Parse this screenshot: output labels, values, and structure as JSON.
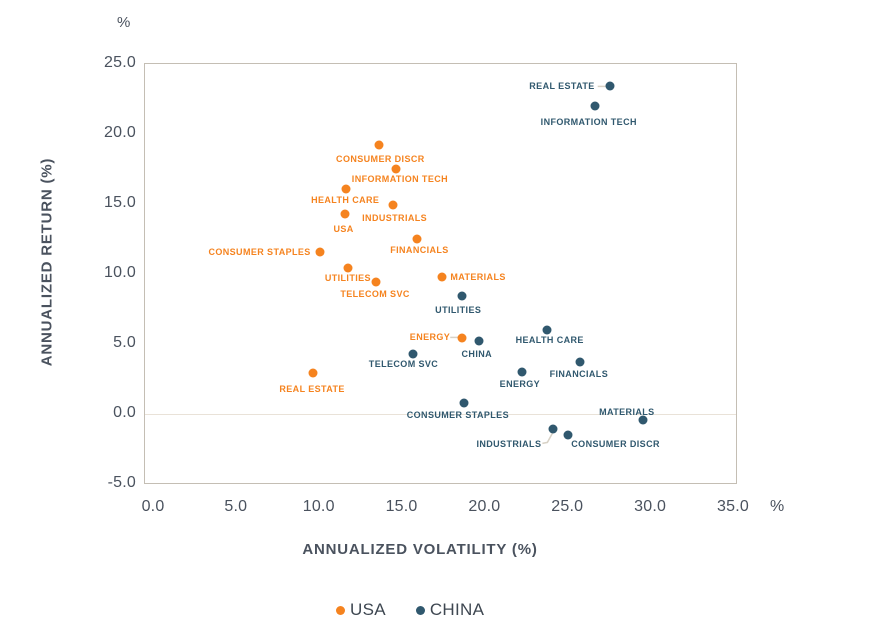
{
  "chart_data": {
    "type": "scatter",
    "xlabel": "ANNUALIZED VOLATILITY (%)",
    "ylabel": "ANNUALIZED RETURN (%)",
    "x_unit": "%",
    "y_unit": "%",
    "xlim": [
      0,
      35
    ],
    "ylim": [
      -5,
      25
    ],
    "x_ticks": [
      "0.0",
      "5.0",
      "10.0",
      "15.0",
      "20.0",
      "25.0",
      "30.0",
      "35.0"
    ],
    "y_ticks": [
      "25.0",
      "20.0",
      "15.0",
      "10.0",
      "5.0",
      "0.0",
      "-5.0"
    ],
    "grid": "zero-line-only",
    "legend_position": "bottom-center",
    "connector_color": "#d8d2c6",
    "series": [
      {
        "name": "USA",
        "color": "#f5831f",
        "points": [
          {
            "label": "CONSUMER DISCR",
            "x": 13.6,
            "y": 19.2,
            "lp": {
              "pos": "below",
              "dx": 1,
              "dy": 9
            }
          },
          {
            "label": "INFORMATION TECH",
            "x": 14.6,
            "y": 17.5,
            "lp": {
              "pos": "below",
              "dx": 4,
              "dy": 5
            }
          },
          {
            "label": "HEALTH CARE",
            "x": 11.6,
            "y": 16.1,
            "lp": {
              "pos": "below",
              "dx": -1,
              "dy": 6
            }
          },
          {
            "label": "INDUSTRIALS",
            "x": 14.4,
            "y": 14.9,
            "lp": {
              "pos": "below",
              "dx": 2,
              "dy": 8
            }
          },
          {
            "label": "USA",
            "x": 11.5,
            "y": 14.3,
            "lp": {
              "pos": "below",
              "dx": -1,
              "dy": 10
            }
          },
          {
            "label": "FINANCIALS",
            "x": 15.9,
            "y": 12.5,
            "lp": {
              "pos": "below",
              "dx": 2,
              "dy": 6
            }
          },
          {
            "label": "CONSUMER STAPLES",
            "x": 10.0,
            "y": 11.6,
            "lp": {
              "pos": "left",
              "dx": -9,
              "dy": 0
            }
          },
          {
            "label": "UTILITIES",
            "x": 11.7,
            "y": 10.4,
            "lp": {
              "pos": "below",
              "dx": 0,
              "dy": 5
            }
          },
          {
            "label": "TELECOM SVC",
            "x": 13.4,
            "y": 9.4,
            "lp": {
              "pos": "below",
              "dx": -1,
              "dy": 7
            }
          },
          {
            "label": "MATERIALS",
            "x": 17.4,
            "y": 9.8,
            "lp": {
              "pos": "right",
              "dx": 8,
              "dy": 0
            }
          },
          {
            "label": "ENERGY",
            "x": 18.6,
            "y": 5.4,
            "lp": {
              "pos": "left",
              "dx": -12,
              "dy": -1,
              "conn": "dash"
            }
          },
          {
            "label": "REAL ESTATE",
            "x": 9.6,
            "y": 2.9,
            "lp": {
              "pos": "below",
              "dx": -1,
              "dy": 11
            }
          }
        ]
      },
      {
        "name": "CHINA",
        "color": "#30586e",
        "points": [
          {
            "label": "REAL ESTATE",
            "x": 27.5,
            "y": 23.4,
            "lp": {
              "pos": "left",
              "dx": -15,
              "dy": 0,
              "conn": "dash"
            }
          },
          {
            "label": "INFORMATION TECH",
            "x": 26.6,
            "y": 22.0,
            "lp": {
              "pos": "below",
              "dx": -6,
              "dy": 11
            }
          },
          {
            "label": "UTILITIES",
            "x": 18.6,
            "y": 8.4,
            "lp": {
              "pos": "below",
              "dx": -4,
              "dy": 9
            }
          },
          {
            "label": "HEALTH CARE",
            "x": 23.7,
            "y": 6.0,
            "lp": {
              "pos": "below",
              "dx": 3,
              "dy": 5
            }
          },
          {
            "label": "CHINA",
            "x": 19.6,
            "y": 5.2,
            "lp": {
              "pos": "below",
              "dx": -2,
              "dy": 8
            }
          },
          {
            "label": "TELECOM SVC",
            "x": 15.6,
            "y": 4.3,
            "lp": {
              "pos": "below",
              "dx": -9,
              "dy": 5
            }
          },
          {
            "label": "FINANCIALS",
            "x": 25.7,
            "y": 3.7,
            "lp": {
              "pos": "below",
              "dx": -1,
              "dy": 7
            }
          },
          {
            "label": "ENERGY",
            "x": 22.2,
            "y": 3.0,
            "lp": {
              "pos": "below",
              "dx": -2,
              "dy": 7
            }
          },
          {
            "label": "CONSUMER STAPLES",
            "x": 18.7,
            "y": 0.8,
            "lp": {
              "pos": "below",
              "dx": -6,
              "dy": 7
            }
          },
          {
            "label": "MATERIALS",
            "x": 29.5,
            "y": -0.4,
            "lp": {
              "pos": "above",
              "dx": -16,
              "dy": -3
            }
          },
          {
            "label": "INDUSTRIALS",
            "x": 24.1,
            "y": -1.1,
            "lp": {
              "pos": "left",
              "dx": -12,
              "dy": 15,
              "conn": "elbow"
            }
          },
          {
            "label": "CONSUMER DISCR",
            "x": 25.0,
            "y": -1.5,
            "lp": {
              "pos": "right",
              "dx": 3,
              "dy": 9
            }
          }
        ]
      }
    ]
  },
  "legend": {
    "items": [
      {
        "label": "USA",
        "color": "#f5831f"
      },
      {
        "label": "CHINA",
        "color": "#30586e"
      }
    ]
  }
}
